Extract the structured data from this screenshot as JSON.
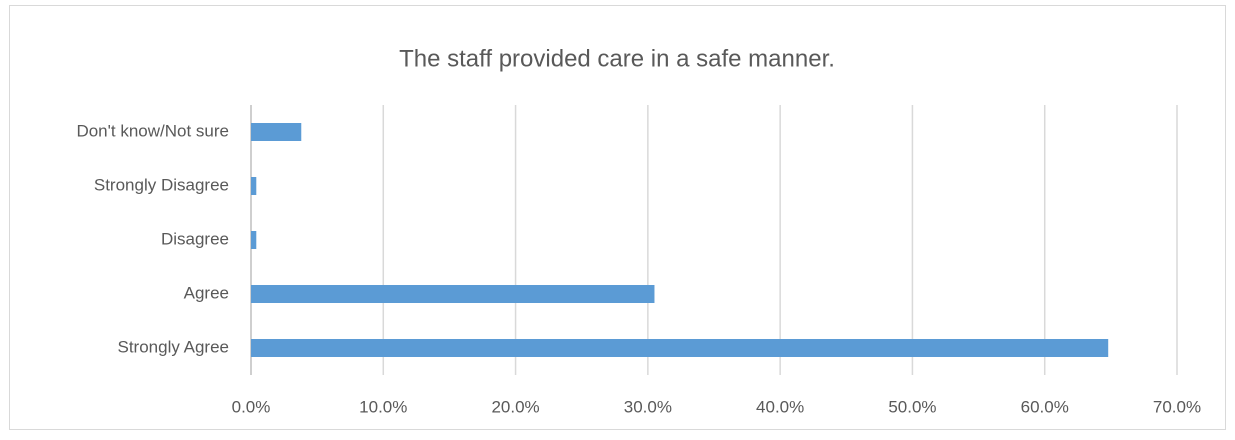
{
  "chart_data": {
    "type": "bar",
    "orientation": "horizontal",
    "title": "The staff provided care in a safe manner.",
    "categories": [
      "Don't know/Not sure",
      "Strongly Disagree",
      "Disagree",
      "Agree",
      "Strongly Agree"
    ],
    "values": [
      3.8,
      0.4,
      0.4,
      30.5,
      64.8
    ],
    "color": "#5b9bd5",
    "xlim": [
      0,
      70
    ],
    "xticks": [
      {
        "value": 0,
        "label": "0.0%"
      },
      {
        "value": 10,
        "label": "10.0%"
      },
      {
        "value": 20,
        "label": "20.0%"
      },
      {
        "value": 30,
        "label": "30.0%"
      },
      {
        "value": 40,
        "label": "40.0%"
      },
      {
        "value": 50,
        "label": "50.0%"
      },
      {
        "value": 60,
        "label": "60.0%"
      },
      {
        "value": 70,
        "label": "70.0%"
      }
    ],
    "grid": true
  }
}
